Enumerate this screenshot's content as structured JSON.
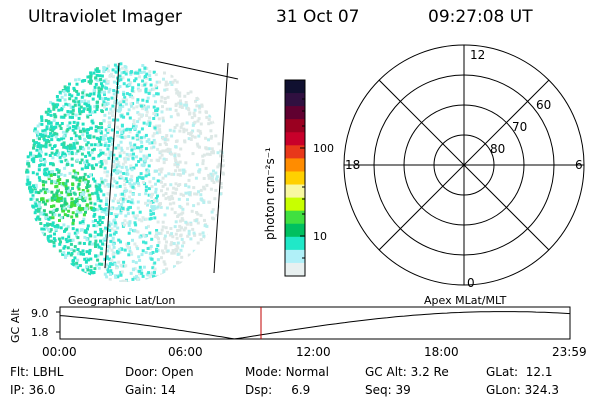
{
  "header": {
    "instrument": "Ultraviolet Imager",
    "date": "31 Oct 07",
    "time": "09:27:08 UT"
  },
  "colorbar": {
    "unit_label": "photon cm⁻²s⁻¹",
    "ticks": [
      "100",
      "10"
    ],
    "colors": [
      "#101030",
      "#301040",
      "#600030",
      "#9a0020",
      "#c8002a",
      "#e8381a",
      "#ff8c00",
      "#ffd000",
      "#f8f8a0",
      "#c8ff00",
      "#40e040",
      "#00c060",
      "#20e8c8",
      "#b0f0f8",
      "#e8f0f0"
    ]
  },
  "polar_plot": {
    "mlt_labels": {
      "top": "12",
      "right": "6",
      "left": "18",
      "bottom": "0"
    },
    "lat_labels": [
      "60",
      "70",
      "80"
    ]
  },
  "timeline": {
    "ylabel": "GC Alt",
    "yticks": [
      "9.0",
      "1.8"
    ],
    "left_caption": "Geographic Lat/Lon",
    "right_caption": "Apex MLat/MLT",
    "xticks": [
      "00:00",
      "06:00",
      "12:00",
      "18:00",
      "23:59"
    ],
    "marker_color": "#c00000"
  },
  "status": {
    "row1": [
      {
        "key": "Flt:",
        "value": "LBHL"
      },
      {
        "key": "Door:",
        "value": "Open"
      },
      {
        "key": "Mode:",
        "value": "Normal"
      },
      {
        "key": "GC Alt:",
        "value": "3.2 Re"
      },
      {
        "key": "GLat:",
        "value": "12.1"
      }
    ],
    "row2": [
      {
        "key": "IP:",
        "value": "36.0"
      },
      {
        "key": "Gain:",
        "value": "14"
      },
      {
        "key": "Dsp:",
        "value": "6.9"
      },
      {
        "key": "Seq:",
        "value": "39"
      },
      {
        "key": "GLon:",
        "value": "324.3"
      }
    ]
  }
}
